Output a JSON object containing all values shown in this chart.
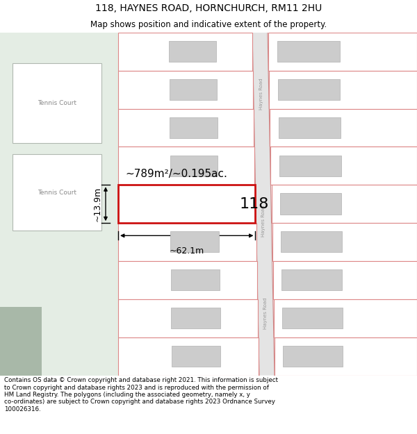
{
  "title": "118, HAYNES ROAD, HORNCHURCH, RM11 2HU",
  "subtitle": "Map shows position and indicative extent of the property.",
  "footer": "Contains OS data © Crown copyright and database right 2021. This information is subject\nto Crown copyright and database rights 2023 and is reproduced with the permission of\nHM Land Registry. The polygons (including the associated geometry, namely x, y\nco-ordinates) are subject to Crown copyright and database rights 2023 Ordnance Survey\n100026316.",
  "bg_map_color": "#f0f4ee",
  "bg_left_color": "#e4ede4",
  "road_bg_color": "#e8e8e8",
  "plot_outline_color": "#dd8888",
  "highlight_color": "#cc1111",
  "building_color": "#cccccc",
  "road_label_color": "#999999",
  "area_label": "~789m²/~0.195ac.",
  "width_label": "~62.1m",
  "height_label": "~13.9m",
  "plot_number": "118",
  "title_fontsize": 10,
  "subtitle_fontsize": 8.5
}
